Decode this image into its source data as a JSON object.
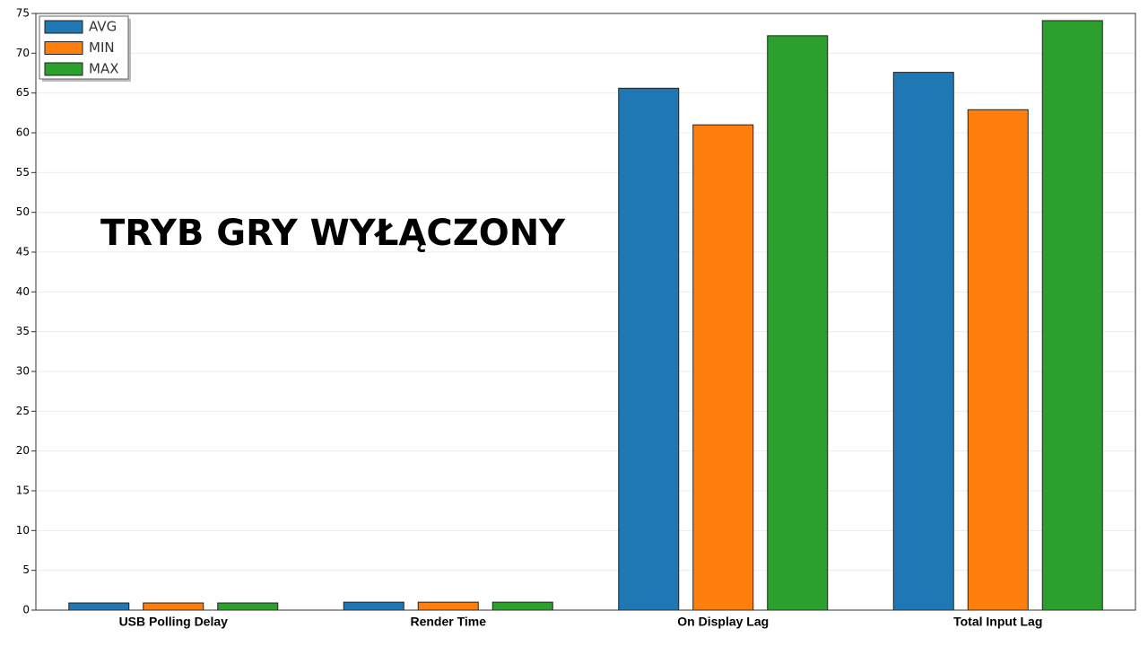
{
  "chart_data": {
    "type": "bar",
    "annotation": "TRYB GRY WYŁĄCZONY",
    "categories": [
      "USB Polling Delay",
      "Render Time",
      "On Display Lag",
      "Total Input Lag"
    ],
    "series": [
      {
        "name": "AVG",
        "color": "#1f77b4",
        "values": [
          0.9,
          1.0,
          65.6,
          67.6
        ]
      },
      {
        "name": "MIN",
        "color": "#ff7f0e",
        "values": [
          0.9,
          1.0,
          61.0,
          62.9
        ]
      },
      {
        "name": "MAX",
        "color": "#2ca02c",
        "values": [
          0.9,
          1.0,
          72.2,
          74.1
        ]
      }
    ],
    "ylim": [
      0,
      75
    ],
    "yticks": [
      0,
      5,
      10,
      15,
      20,
      25,
      30,
      35,
      40,
      45,
      50,
      55,
      60,
      65,
      70,
      75
    ],
    "grid": true,
    "legend": "upper left",
    "annotation_color": "#f07a1a"
  }
}
